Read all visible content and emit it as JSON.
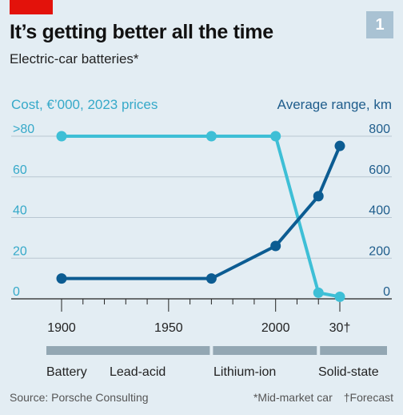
{
  "header": {
    "title": "It’s getting better all the time",
    "subtitle": "Electric-car batteries*",
    "badge": "1"
  },
  "colors": {
    "cost_series": "#3ebfd6",
    "range_series": "#0c5c92",
    "cost_axis_text": "#36a9c9",
    "range_axis_text": "#1f5d8c",
    "battery_bar": "#93a7b3"
  },
  "chart_data": {
    "type": "line",
    "left_axis_label": "Cost, €’000, 2023 prices",
    "right_axis_label": "Average range, km",
    "left_ticks": [
      ">80",
      "60",
      "40",
      "20",
      "0"
    ],
    "left_ylim": [
      0,
      80
    ],
    "right_ticks": [
      "800",
      "600",
      "400",
      "200",
      "0"
    ],
    "right_ylim": [
      0,
      800
    ],
    "x_ticks": [
      "1900",
      "1950",
      "2000",
      "30†"
    ],
    "x_tick_values": [
      1900,
      1950,
      2000,
      2030
    ],
    "xlim": [
      1900,
      2030
    ],
    "grid": true,
    "series": [
      {
        "name": "Cost",
        "axis": "left",
        "x": [
          1900,
          1970,
          2000,
          2020,
          2030
        ],
        "y": [
          80,
          80,
          80,
          3,
          1
        ]
      },
      {
        "name": "Average range",
        "axis": "right",
        "x": [
          1900,
          1970,
          2000,
          2020,
          2030
        ],
        "y": [
          100,
          100,
          260,
          505,
          752
        ]
      }
    ],
    "battery_label": "Battery",
    "battery_types": [
      {
        "label": "Lead-acid",
        "from": 1900,
        "to": 1970
      },
      {
        "label": "Lithium-ion",
        "from": 1970,
        "to": 2020
      },
      {
        "label": "Solid-state",
        "from": 2020,
        "to": 2030
      }
    ]
  },
  "footer": {
    "source": "Source: Porsche Consulting",
    "note_market": "*Mid-market car",
    "note_forecast": "†Forecast"
  }
}
